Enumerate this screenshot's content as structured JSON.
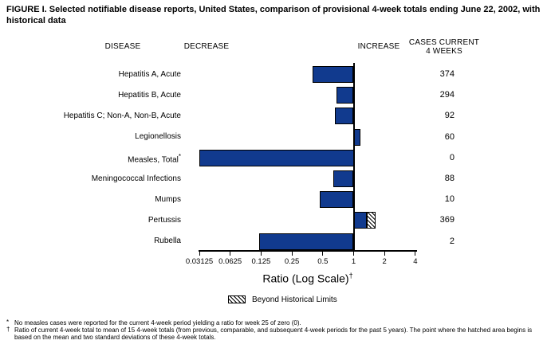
{
  "title": {
    "line1": "FIGURE I. Selected notifiable disease reports, United States, comparison of provisional 4-week totals ending June 22, 2002, with",
    "line2": "historical data"
  },
  "columns": {
    "disease": "DISEASE",
    "decrease": "DECREASE",
    "increase": "INCREASE",
    "cases_line1": "CASES CURRENT",
    "cases_line2": "4 WEEKS"
  },
  "chart_data": {
    "type": "bar",
    "orientation": "horizontal",
    "x_scale": "log2",
    "xlabel": "Ratio (Log Scale)",
    "xlabel_sup": "†",
    "xlim": [
      0.03125,
      4
    ],
    "baseline_ratio": 1,
    "tick_labels": [
      "0.03125",
      "0.0625",
      "0.125",
      "0.25",
      "0.5",
      "1",
      "2",
      "4"
    ],
    "ticks": [
      0.03125,
      0.0625,
      0.125,
      0.25,
      0.5,
      1,
      2,
      4
    ],
    "legend_label": "Beyond Historical Limits",
    "bar_color": "#113a8e",
    "rows": [
      {
        "disease": "Hepatitis A, Acute",
        "sup": "",
        "ratio": 0.4,
        "cases": "374"
      },
      {
        "disease": "Hepatitis B, Acute",
        "sup": "",
        "ratio": 0.68,
        "cases": "294"
      },
      {
        "disease": "Hepatitis C; Non-A, Non-B, Acute",
        "sup": "",
        "ratio": 0.66,
        "cases": "92"
      },
      {
        "disease": "Legionellosis",
        "sup": "",
        "ratio": 1.17,
        "cases": "60"
      },
      {
        "disease": "Measles, Total",
        "sup": "*",
        "ratio": 0,
        "cases": "0"
      },
      {
        "disease": "Meningococcal Infections",
        "sup": "",
        "ratio": 0.63,
        "cases": "88"
      },
      {
        "disease": "Mumps",
        "sup": "",
        "ratio": 0.47,
        "cases": "10"
      },
      {
        "disease": "Pertussis",
        "sup": "",
        "ratio": 1.64,
        "hatch_start": 1.34,
        "beyond_historical_limits": true,
        "cases": "369"
      },
      {
        "disease": "Rubella",
        "sup": "",
        "ratio": 0.12,
        "cases": "2"
      }
    ]
  },
  "footnotes": [
    {
      "marker": "*",
      "text": "No measles cases were reported for the current 4-week period yielding a ratio for week 25 of zero (0)."
    },
    {
      "marker": "†",
      "text": "Ratio of current 4-week total to mean of 15 4-week totals (from previous, comparable, and subsequent 4-week periods for the past 5 years). The point where the hatched area begins is based on the mean and two standard deviations of these 4-week totals."
    }
  ]
}
